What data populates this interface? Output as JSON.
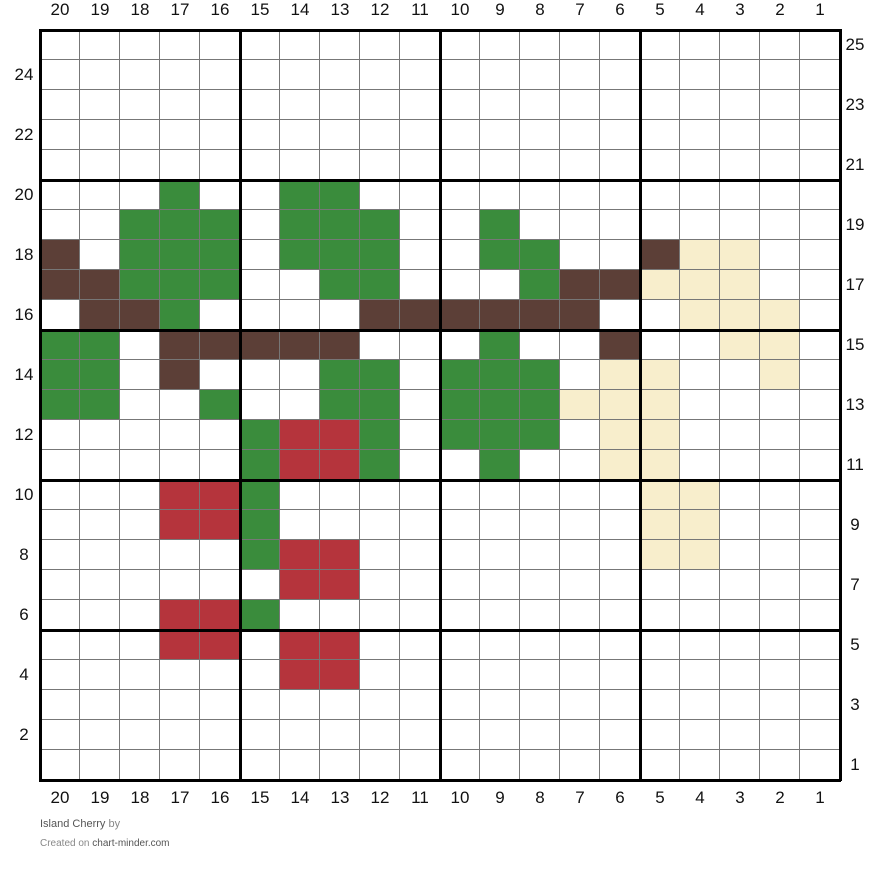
{
  "chart_data": {
    "type": "heatmap",
    "title": "Island Cherry",
    "columns": [
      20,
      19,
      18,
      17,
      16,
      15,
      14,
      13,
      12,
      11,
      10,
      9,
      8,
      7,
      6,
      5,
      4,
      3,
      2,
      1
    ],
    "row_numbers_top_to_bottom": [
      25,
      24,
      23,
      22,
      21,
      20,
      19,
      18,
      17,
      16,
      15,
      14,
      13,
      12,
      11,
      10,
      9,
      8,
      7,
      6,
      5,
      4,
      3,
      2,
      1
    ],
    "left_row_labels": [
      24,
      22,
      20,
      18,
      16,
      14,
      12,
      10,
      8,
      6,
      4,
      2
    ],
    "right_row_labels": [
      25,
      23,
      21,
      19,
      17,
      15,
      13,
      11,
      9,
      7,
      5,
      3,
      1
    ],
    "palette": {
      ".": "#ffffff",
      "G": "#3a8c3c",
      "B": "#5c3f37",
      "R": "#b5343c",
      "C": "#f8eecc"
    },
    "palette_names": {
      "G": "green",
      "B": "brown",
      "R": "red",
      "C": "cream"
    },
    "rows_top_to_bottom": [
      "....................",
      "....................",
      "....................",
      "....................",
      "....................",
      "...G..GG............",
      "..GGG.GGG..G........",
      "B.GGG.GGG..GG..BCC..",
      "BBGGG..GG...GBBCCC..",
      ".BBG....BBBBBB..CCC.",
      "GG.BBBBB...G..B..CC.",
      "GG.B...GG.GGG.CC..C.",
      "GG..G..GG.GGGCCC....",
      ".....GRRG.GGG.CC....",
      ".....GRRG..G..CC....",
      "...RRG.........CC...",
      "...RRG.........CC...",
      ".....GRR.......CC...",
      "......RR............",
      "...RRG..............",
      "...RR.RR............",
      "......RR............",
      "....................",
      "....................",
      "...................."
    ]
  },
  "footer": {
    "title": "Island Cherry",
    "by": "by",
    "created_on": "Created on",
    "site": "chart-minder.com"
  }
}
